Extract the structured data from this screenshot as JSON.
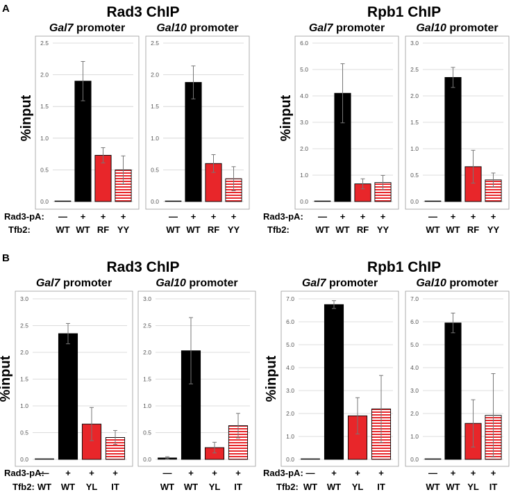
{
  "figure": {
    "section_labels": [
      "A",
      "B"
    ],
    "titles": [
      [
        "Rad3 ChIP",
        "Rpb1 ChIP"
      ],
      [
        "Rad3 ChIP",
        "Rpb1 ChIP"
      ]
    ],
    "ylabel": "%input",
    "row_labels": {
      "rad3": "Rad3-pA:",
      "tfb2": "Tfb2:"
    },
    "rad3_values": [
      "—",
      "+",
      "+",
      "+"
    ],
    "colors": {
      "wt": "#000000",
      "mutant": "#e8262a",
      "neg": "#000000",
      "grid": "#d0d0d0",
      "frame": "#9a9a9a"
    }
  },
  "chart_data": [
    {
      "type": "bar",
      "panel": "A",
      "group": "Rad3 ChIP",
      "promoter": "Gal7",
      "categories": [
        "WT",
        "WT",
        "RF",
        "YY"
      ],
      "values": [
        0.01,
        1.9,
        0.73,
        0.5
      ],
      "errors": [
        0.0,
        0.31,
        0.12,
        0.22
      ],
      "ylim": [
        0,
        2.5
      ],
      "yticks": [
        "0.0",
        "0.5",
        "1.0",
        "1.5",
        "2.0",
        "2.5"
      ],
      "ylabel": "%input"
    },
    {
      "type": "bar",
      "panel": "A",
      "group": "Rad3 ChIP",
      "promoter": "Gal10",
      "categories": [
        "WT",
        "WT",
        "RF",
        "YY"
      ],
      "values": [
        0.01,
        1.88,
        0.6,
        0.36
      ],
      "errors": [
        0.0,
        0.26,
        0.14,
        0.19
      ],
      "ylim": [
        0,
        2.5
      ],
      "yticks": [
        "0.0",
        "0.5",
        "1.0",
        "1.5",
        "2.0",
        "2.5"
      ]
    },
    {
      "type": "bar",
      "panel": "A",
      "group": "Rpb1 ChIP",
      "promoter": "Gal7",
      "categories": [
        "WT",
        "WT",
        "RF",
        "YY"
      ],
      "values": [
        0.02,
        4.1,
        0.67,
        0.72
      ],
      "errors": [
        0.0,
        1.12,
        0.19,
        0.27
      ],
      "ylim": [
        0,
        6.0
      ],
      "yticks": [
        "0.0",
        "1.0",
        "2.0",
        "3.0",
        "4.0",
        "5.0",
        "6.0"
      ],
      "ylabel": "%input"
    },
    {
      "type": "bar",
      "panel": "A",
      "group": "Rpb1 ChIP",
      "promoter": "Gal10",
      "categories": [
        "WT",
        "WT",
        "RF",
        "YY"
      ],
      "values": [
        0.01,
        2.35,
        0.66,
        0.41
      ],
      "errors": [
        0.0,
        0.19,
        0.31,
        0.13
      ],
      "ylim": [
        0,
        3.0
      ],
      "yticks": [
        "0.0",
        "0.5",
        "1.0",
        "1.5",
        "2.0",
        "2.5",
        "3.0"
      ]
    },
    {
      "type": "bar",
      "panel": "B",
      "group": "Rad3 ChIP",
      "promoter": "Gal7",
      "categories": [
        "WT",
        "WT",
        "YL",
        "IT"
      ],
      "values": [
        0.01,
        2.35,
        0.66,
        0.41
      ],
      "errors": [
        0.0,
        0.19,
        0.31,
        0.13
      ],
      "ylim": [
        0,
        3.0
      ],
      "yticks": [
        "0.0",
        "0.5",
        "1.0",
        "1.5",
        "2.0",
        "2.5",
        "3.0"
      ],
      "ylabel": "%input"
    },
    {
      "type": "bar",
      "panel": "B",
      "group": "Rad3 ChIP",
      "promoter": "Gal10",
      "categories": [
        "WT",
        "WT",
        "YL",
        "IT"
      ],
      "values": [
        0.03,
        2.03,
        0.22,
        0.63
      ],
      "errors": [
        0.02,
        0.62,
        0.1,
        0.23
      ],
      "ylim": [
        0,
        3.0
      ],
      "yticks": [
        "0.0",
        "0.5",
        "1.0",
        "1.5",
        "2.0",
        "2.5",
        "3.0"
      ]
    },
    {
      "type": "bar",
      "panel": "B",
      "group": "Rpb1 ChIP",
      "promoter": "Gal7",
      "categories": [
        "WT",
        "WT",
        "YL",
        "IT"
      ],
      "values": [
        0.03,
        6.75,
        1.9,
        2.2
      ],
      "errors": [
        0.0,
        0.17,
        0.79,
        1.46
      ],
      "ylim": [
        0,
        7.0
      ],
      "yticks": [
        "0.0",
        "1.0",
        "2.0",
        "3.0",
        "4.0",
        "5.0",
        "6.0",
        "7.0"
      ],
      "ylabel": "%input"
    },
    {
      "type": "bar",
      "panel": "B",
      "group": "Rpb1 ChIP",
      "promoter": "Gal10",
      "categories": [
        "WT",
        "WT",
        "YL",
        "IT"
      ],
      "values": [
        0.02,
        5.95,
        1.57,
        1.92
      ],
      "errors": [
        0.0,
        0.43,
        1.03,
        1.82
      ],
      "ylim": [
        0,
        7.0
      ],
      "yticks": [
        "0.0",
        "1.0",
        "2.0",
        "3.0",
        "4.0",
        "5.0",
        "6.0",
        "7.0"
      ]
    }
  ]
}
